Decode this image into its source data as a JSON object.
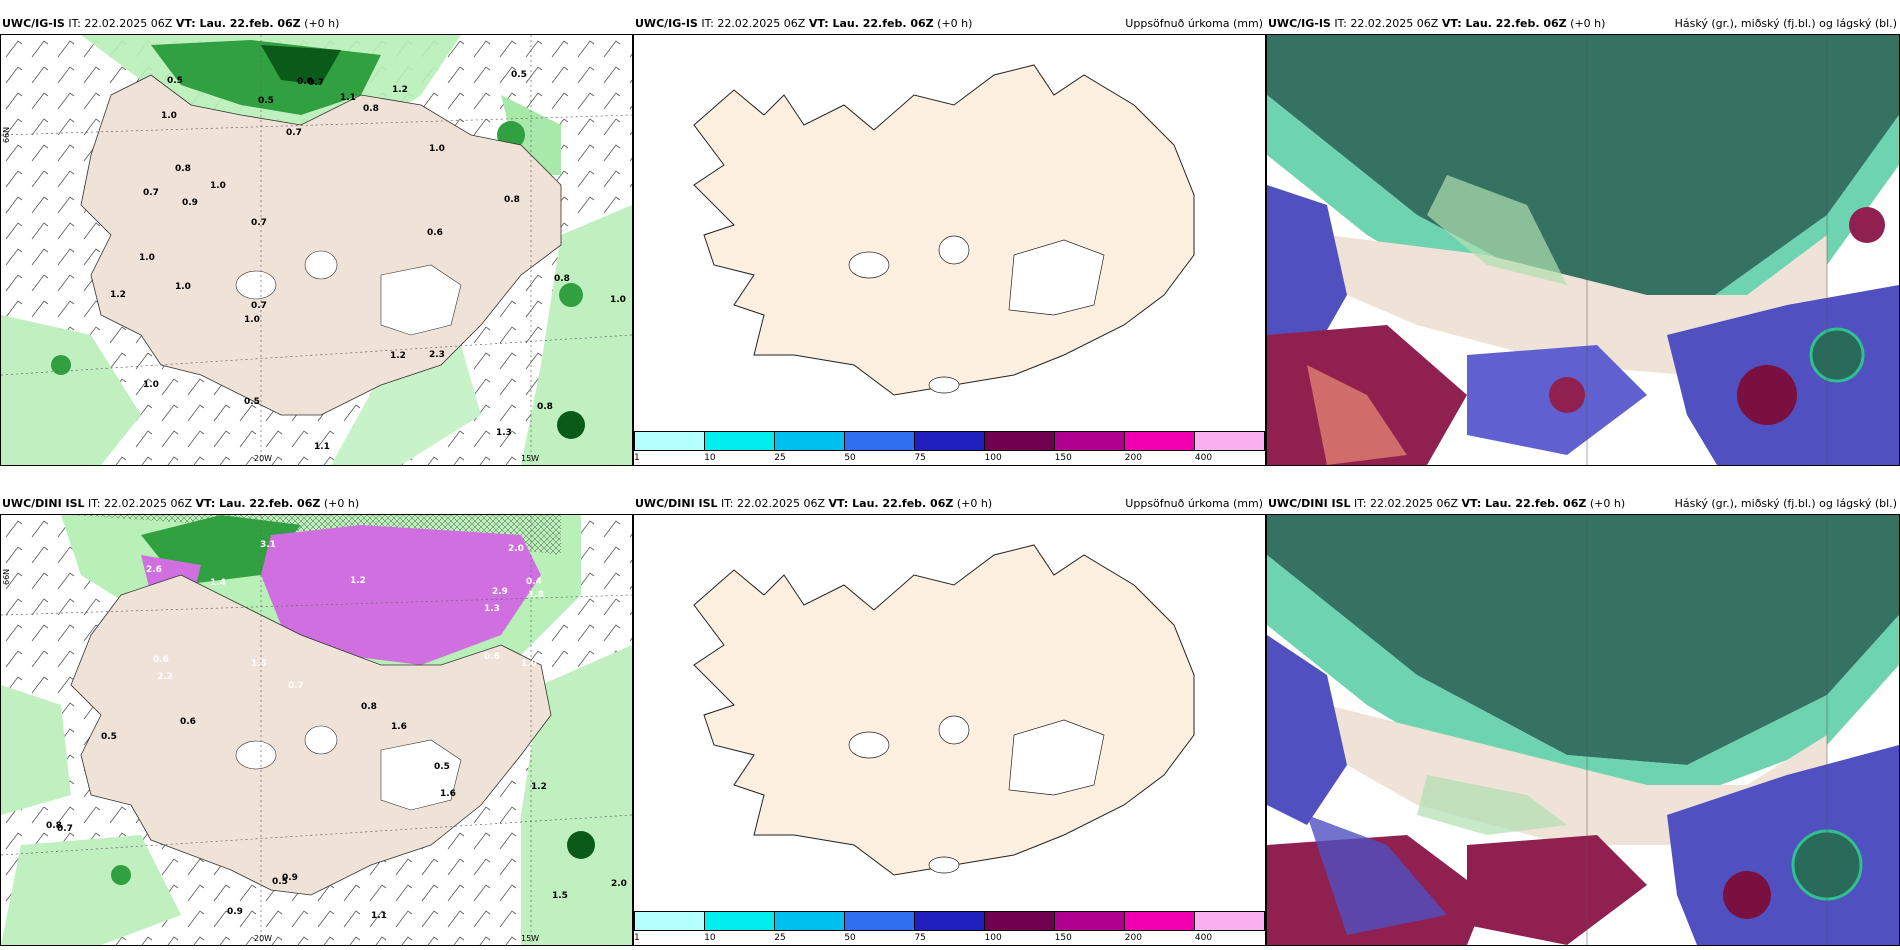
{
  "panels": {
    "tl": {
      "model": "UWC/IG-IS",
      "it": "IT: 22.02.2025 06Z",
      "vt": "VT: Lau. 22.feb. 06Z",
      "lead": "(+0 h)",
      "right": ""
    },
    "tm": {
      "model": "UWC/IG-IS",
      "it": "IT: 22.02.2025 06Z",
      "vt": "VT: Lau. 22.feb. 06Z",
      "lead": "(+0 h)",
      "right": "Uppsöfnuð úrkoma (mm)"
    },
    "tr": {
      "model": "UWC/IG-IS",
      "it": "IT: 22.02.2025 06Z",
      "vt": "VT: Lau. 22.feb. 06Z",
      "lead": "(+0 h)",
      "right": "Háský (gr.), miðský (fj.bl.) og lágský (bl.)"
    },
    "bl": {
      "model": "UWC/DINI ISL",
      "it": "IT: 22.02.2025 06Z",
      "vt": "VT: Lau. 22.feb. 06Z",
      "lead": "(+0 h)",
      "right": ""
    },
    "bm": {
      "model": "UWC/DINI ISL",
      "it": "IT: 22.02.2025 06Z",
      "vt": "VT: Lau. 22.feb. 06Z",
      "lead": "(+0 h)",
      "right": "Uppsöfnuð úrkoma (mm)"
    },
    "br": {
      "model": "UWC/DINI ISL",
      "it": "IT: 22.02.2025 06Z",
      "vt": "VT: Lau. 22.feb. 06Z",
      "lead": "(+0 h)",
      "right": "Háský (gr.), miðský (fj.bl.) og lágský (bl.)"
    }
  },
  "axis_labels": {
    "lon1": "20W",
    "lon2": "15W",
    "lat": "66N"
  },
  "colorbar": {
    "ticks": [
      "1",
      "10",
      "25",
      "50",
      "75",
      "100",
      "150",
      "200",
      "400"
    ],
    "colors": [
      "#b3ffff",
      "#00eeee",
      "#00c0f0",
      "#3070f0",
      "#2020c0",
      "#700050",
      "#b00090",
      "#f000b0",
      "#f8b0f0"
    ]
  },
  "top_left_values": [
    "0.8",
    "1.0",
    "0.5",
    "0.7",
    "1.2",
    "0.9",
    "0.6",
    "1.1",
    "0.8",
    "0.5",
    "0.7",
    "1.0",
    "0.7",
    "0.8",
    "1.0",
    "0.5",
    "0.7",
    "1.0",
    "1.2",
    "0.8",
    "1.0",
    "0.5",
    "0.7",
    "1.0",
    "0.6",
    "1.0",
    "1.3",
    "0.8",
    "2.3",
    "1.1",
    "1.0",
    "1.2"
  ],
  "bottom_left_values": [
    "0.6",
    "0.4",
    "1.0",
    "1.2",
    "2.2",
    "3.1",
    "2.9",
    "1.5",
    "2.0",
    "1.4",
    "1.8",
    "2.6",
    "1.3",
    "0.7",
    "0.6",
    "0.5",
    "1.5",
    "0.6",
    "0.9",
    "1.2",
    "0.8",
    "0.7",
    "1.1",
    "1.6",
    "0.9",
    "0.5",
    "0.8",
    "1.6",
    "0.5",
    "2.0"
  ]
}
